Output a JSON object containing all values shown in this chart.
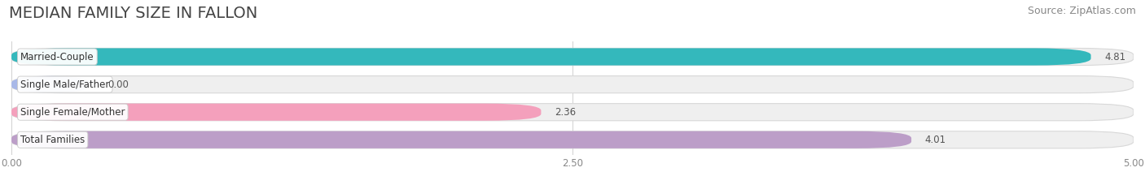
{
  "title": "MEDIAN FAMILY SIZE IN FALLON",
  "source": "Source: ZipAtlas.com",
  "categories": [
    "Married-Couple",
    "Single Male/Father",
    "Single Female/Mother",
    "Total Families"
  ],
  "values": [
    4.81,
    0.0,
    2.36,
    4.01
  ],
  "bar_colors": [
    "#34b8bc",
    "#a8b8e8",
    "#f4a0bc",
    "#bc9ec8"
  ],
  "bar_bg_color": "#efefef",
  "background_color": "#ffffff",
  "xlim": [
    0,
    5.0
  ],
  "xticks": [
    0.0,
    2.5,
    5.0
  ],
  "xtick_labels": [
    "0.00",
    "2.50",
    "5.00"
  ],
  "title_fontsize": 14,
  "source_fontsize": 9,
  "label_fontsize": 8.5,
  "value_fontsize": 8.5,
  "figsize": [
    14.06,
    2.33
  ],
  "dpi": 100
}
